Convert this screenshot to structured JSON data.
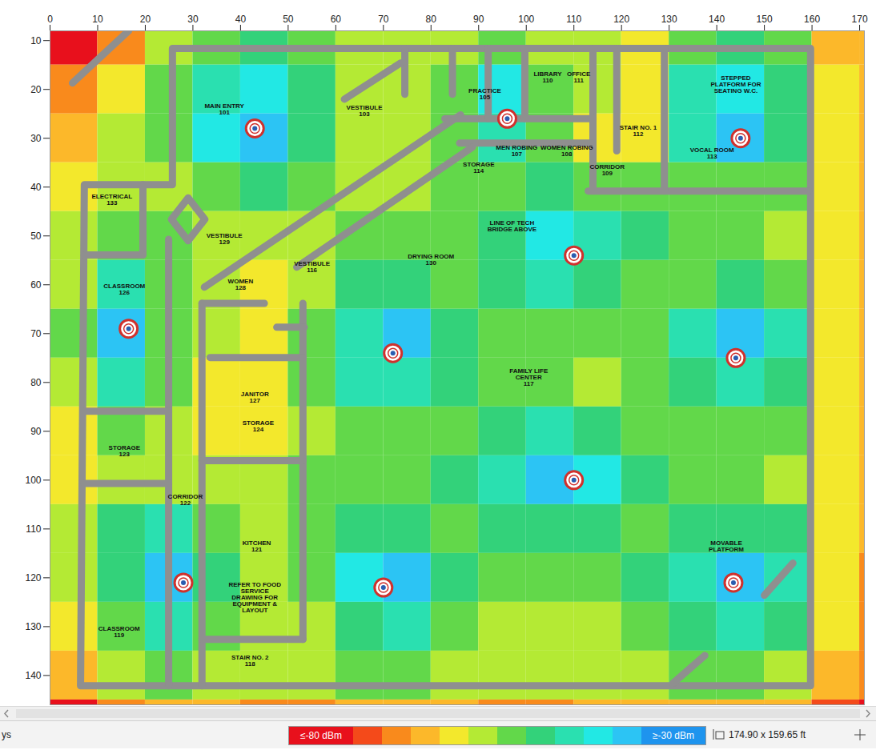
{
  "chart_data": {
    "type": "heatmap",
    "xlim": [
      0,
      171
    ],
    "xticks": [
      0,
      10,
      20,
      30,
      40,
      50,
      60,
      70,
      80,
      90,
      100,
      110,
      120,
      130,
      140,
      150,
      160,
      170
    ],
    "ylim": [
      8,
      146
    ],
    "yticks": [
      10,
      20,
      30,
      40,
      50,
      60,
      70,
      80,
      90,
      100,
      110,
      120,
      130,
      140
    ],
    "x": [
      5,
      15,
      25,
      35,
      45,
      55,
      65,
      75,
      85,
      95,
      105,
      115,
      125,
      135,
      145,
      155,
      165,
      175
    ],
    "y": [
      10,
      20,
      30,
      40,
      50,
      60,
      70,
      80,
      90,
      100,
      110,
      120,
      130,
      140,
      150
    ],
    "cell_width": 10,
    "cell_height": 10,
    "values": [
      [
        -82,
        -72,
        -60,
        -53,
        -48,
        -53,
        -60,
        -58,
        -56,
        -52,
        -56,
        -60,
        -63,
        -55,
        -48,
        -55,
        -66,
        -70
      ],
      [
        -72,
        -63,
        -55,
        -42,
        -38,
        -48,
        -57,
        -58,
        -52,
        -40,
        -52,
        -60,
        -62,
        -45,
        -36,
        -48,
        -65,
        -70
      ],
      [
        -66,
        -60,
        -53,
        -40,
        -34,
        -48,
        -57,
        -56,
        -52,
        -45,
        -55,
        -62,
        -62,
        -44,
        -34,
        -47,
        -63,
        -70
      ],
      [
        -62,
        -60,
        -58,
        -52,
        -50,
        -55,
        -60,
        -56,
        -54,
        -53,
        -50,
        -52,
        -55,
        -54,
        -52,
        -55,
        -64,
        -70
      ],
      [
        -60,
        -52,
        -55,
        -56,
        -57,
        -58,
        -55,
        -54,
        -52,
        -48,
        -36,
        -42,
        -50,
        -54,
        -55,
        -57,
        -65,
        -70
      ],
      [
        -58,
        -45,
        -55,
        -60,
        -62,
        -56,
        -50,
        -50,
        -52,
        -50,
        -45,
        -47,
        -52,
        -52,
        -48,
        -52,
        -63,
        -70
      ],
      [
        -55,
        -34,
        -52,
        -60,
        -62,
        -52,
        -42,
        -34,
        -46,
        -53,
        -55,
        -55,
        -52,
        -45,
        -34,
        -45,
        -62,
        -70
      ],
      [
        -58,
        -45,
        -55,
        -62,
        -63,
        -54,
        -45,
        -42,
        -50,
        -54,
        -55,
        -56,
        -54,
        -48,
        -42,
        -48,
        -63,
        -70
      ],
      [
        -62,
        -55,
        -58,
        -62,
        -62,
        -56,
        -53,
        -52,
        -52,
        -48,
        -45,
        -48,
        -52,
        -54,
        -53,
        -54,
        -64,
        -70
      ],
      [
        -63,
        -57,
        -58,
        -60,
        -58,
        -55,
        -54,
        -53,
        -50,
        -42,
        -34,
        -40,
        -48,
        -54,
        -55,
        -56,
        -64,
        -70
      ],
      [
        -60,
        -50,
        -45,
        -55,
        -58,
        -55,
        -48,
        -46,
        -52,
        -50,
        -46,
        -48,
        -52,
        -50,
        -46,
        -50,
        -63,
        -70
      ],
      [
        -60,
        -46,
        -34,
        -48,
        -58,
        -54,
        -40,
        -35,
        -48,
        -55,
        -54,
        -54,
        -50,
        -42,
        -34,
        -45,
        -63,
        -72
      ],
      [
        -62,
        -52,
        -42,
        -54,
        -60,
        -56,
        -46,
        -45,
        -52,
        -56,
        -56,
        -56,
        -52,
        -48,
        -45,
        -50,
        -65,
        -73
      ],
      [
        -68,
        -58,
        -54,
        -58,
        -60,
        -58,
        -54,
        -54,
        -56,
        -58,
        -58,
        -58,
        -56,
        -55,
        -54,
        -56,
        -68,
        -75
      ],
      [
        -82,
        -72,
        -68,
        -70,
        -72,
        -74,
        -68,
        -66,
        -70,
        -72,
        -72,
        -70,
        -68,
        -68,
        -66,
        -70,
        -76,
        -82
      ]
    ],
    "colorbar": {
      "range": [
        -80,
        -30
      ],
      "thresholds": [
        -80,
        -75,
        -70,
        -65,
        -60,
        -55,
        -50,
        -45,
        -40,
        -35,
        -30
      ],
      "colors": [
        "#e8101c",
        "#f44a1a",
        "#f98a1c",
        "#fcb82a",
        "#f3e82c",
        "#b4ea34",
        "#62d84a",
        "#33d27a",
        "#2ae0b0",
        "#22e8e4",
        "#2cc4f4",
        "#1e94ee"
      ],
      "ticks": [
        {
          "value": -80,
          "label": "≤-80 dBm"
        },
        {
          "value": -30,
          "label": "≥-30 dBm"
        }
      ]
    },
    "access_points": [
      {
        "x": 43,
        "y": 28
      },
      {
        "x": 96,
        "y": 26
      },
      {
        "x": 145,
        "y": 30
      },
      {
        "x": 110,
        "y": 54
      },
      {
        "x": 16.5,
        "y": 69
      },
      {
        "x": 72,
        "y": 74
      },
      {
        "x": 144,
        "y": 75
      },
      {
        "x": 110,
        "y": 100
      },
      {
        "x": 28,
        "y": 121
      },
      {
        "x": 70,
        "y": 122
      },
      {
        "x": 143.5,
        "y": 121
      }
    ],
    "walls": [
      [
        [
          25.7,
          39.5
        ],
        [
          25.7,
          11.6
        ],
        [
          159.7,
          11.6
        ],
        [
          159.7,
          142.1
        ],
        [
          6.4,
          142.1
        ],
        [
          7.2,
          39.5
        ],
        [
          25.7,
          39.5
        ]
      ],
      [
        [
          4.7,
          18.7
        ],
        [
          16.5,
          8.0
        ]
      ],
      [
        [
          113,
          40.8
        ],
        [
          159.3,
          40.8
        ]
      ],
      [
        [
          114,
          11.6
        ],
        [
          114,
          40.8
        ]
      ],
      [
        [
          119,
          11.6
        ],
        [
          119,
          32.6
        ]
      ],
      [
        [
          129,
          11.6
        ],
        [
          129,
          40.8
        ]
      ],
      [
        [
          82.9,
          26
        ],
        [
          114,
          26
        ]
      ],
      [
        [
          86,
          31
        ],
        [
          114,
          31
        ]
      ],
      [
        [
          92,
          11.6
        ],
        [
          92,
          26
        ]
      ],
      [
        [
          99.7,
          11.6
        ],
        [
          99.7,
          26
        ]
      ],
      [
        [
          74.5,
          11.6
        ],
        [
          74.5,
          21
        ]
      ],
      [
        [
          84.5,
          11.6
        ],
        [
          84.5,
          21
        ]
      ],
      [
        [
          61.8,
          22
        ],
        [
          73.6,
          14.6
        ]
      ],
      [
        [
          32.4,
          60.5
        ],
        [
          86.2,
          25.2
        ]
      ],
      [
        [
          51.8,
          56.4
        ],
        [
          88.7,
          31.8
        ]
      ],
      [
        [
          24.9,
          50.7
        ],
        [
          24.9,
          142.1
        ]
      ],
      [
        [
          31.9,
          63.8
        ],
        [
          31.9,
          142.1
        ]
      ],
      [
        [
          53.1,
          63.8
        ],
        [
          53.1,
          132.6
        ]
      ],
      [
        [
          7.2,
          85.9
        ],
        [
          24.9,
          85.9
        ]
      ],
      [
        [
          7.2,
          100.7
        ],
        [
          24.9,
          100.7
        ]
      ],
      [
        [
          31.9,
          96
        ],
        [
          53.1,
          96
        ]
      ],
      [
        [
          33.6,
          74.9
        ],
        [
          53.1,
          74.9
        ]
      ],
      [
        [
          31.9,
          132.6
        ],
        [
          53.1,
          132.6
        ]
      ],
      [
        [
          31.9,
          63.8
        ],
        [
          45,
          63.8
        ]
      ],
      [
        [
          19.5,
          39.5
        ],
        [
          19.5,
          53.9
        ]
      ],
      [
        [
          7.2,
          53.9
        ],
        [
          19.5,
          53.9
        ]
      ],
      [
        [
          25.5,
          46.6
        ],
        [
          29,
          42.2
        ],
        [
          32.5,
          46.6
        ],
        [
          29,
          51
        ],
        [
          25.5,
          46.6
        ]
      ],
      [
        [
          47.6,
          68.7
        ],
        [
          53.4,
          68.7
        ]
      ],
      [
        [
          150,
          123.6
        ],
        [
          156,
          117
        ]
      ],
      [
        [
          130.8,
          141.6
        ],
        [
          137.5,
          135.9
        ]
      ]
    ],
    "rooms": [
      {
        "name": "MAIN ENTRY",
        "number": "101",
        "x": 36.6,
        "y": 24
      },
      {
        "name": "VESTIBULE",
        "number": "103",
        "x": 66,
        "y": 24.4
      },
      {
        "name": "PRACTICE",
        "number": "105",
        "x": 91.3,
        "y": 21
      },
      {
        "name": "LIBRARY",
        "number": "110",
        "x": 104.5,
        "y": 17.5
      },
      {
        "name": "OFFICE",
        "number": "111",
        "x": 111,
        "y": 17.5
      },
      {
        "name": "MEN ROBING",
        "number": "107",
        "x": 98,
        "y": 32.6
      },
      {
        "name": "WOMEN ROBING",
        "number": "108",
        "x": 108.5,
        "y": 32.6
      },
      {
        "name": "STORAGE",
        "number": "114",
        "x": 90,
        "y": 36
      },
      {
        "name": "STAIR NO. 1",
        "number": "112",
        "x": 123.5,
        "y": 28.5
      },
      {
        "name": "CORRIDOR",
        "number": "109",
        "x": 117,
        "y": 36.5
      },
      {
        "name": "STEPPED PLATFORM FOR SEATING W.C.",
        "x": 144,
        "y": 19
      },
      {
        "name": "VOCAL ROOM",
        "number": "113",
        "x": 139,
        "y": 33
      },
      {
        "name": "ELECTRICAL",
        "number": "133",
        "x": 13,
        "y": 42.5
      },
      {
        "name": "VESTIBULE",
        "number": "129",
        "x": 36.6,
        "y": 50.6
      },
      {
        "name": "VESTIBULE",
        "number": "116",
        "x": 55,
        "y": 56.4
      },
      {
        "name": "DRYING ROOM",
        "number": "130",
        "x": 80,
        "y": 54.8
      },
      {
        "name": "LINE OF TECH BRIDGE ABOVE",
        "x": 97,
        "y": 48
      },
      {
        "name": "CLASSROOM",
        "number": "126",
        "x": 15.6,
        "y": 61
      },
      {
        "name": "WOMEN",
        "number": "128",
        "x": 40,
        "y": 60
      },
      {
        "name": "JANITOR",
        "number": "127",
        "x": 43,
        "y": 83
      },
      {
        "name": "STORAGE",
        "number": "124",
        "x": 43.7,
        "y": 89
      },
      {
        "name": "STORAGE",
        "number": "123",
        "x": 15.6,
        "y": 94
      },
      {
        "name": "CORRIDOR",
        "number": "122",
        "x": 28.4,
        "y": 104
      },
      {
        "name": "KITCHEN",
        "number": "121",
        "x": 43.4,
        "y": 113.5
      },
      {
        "name": "REFER TO FOOD SERVICE DRAWING FOR EQUIPMENT & LAYOUT",
        "x": 43,
        "y": 124
      },
      {
        "name": "STAIR NO. 2",
        "number": "118",
        "x": 42,
        "y": 137
      },
      {
        "name": "CLASSROOM",
        "number": "119",
        "x": 14.5,
        "y": 131
      },
      {
        "name": "FAMILY LIFE CENTER",
        "number": "117",
        "x": 100.5,
        "y": 79
      },
      {
        "name": "MOVABLE PLATFORM",
        "x": 142,
        "y": 113.5
      }
    ],
    "map_size": "174.90 x 159.65 ft",
    "status_text": "ys"
  }
}
